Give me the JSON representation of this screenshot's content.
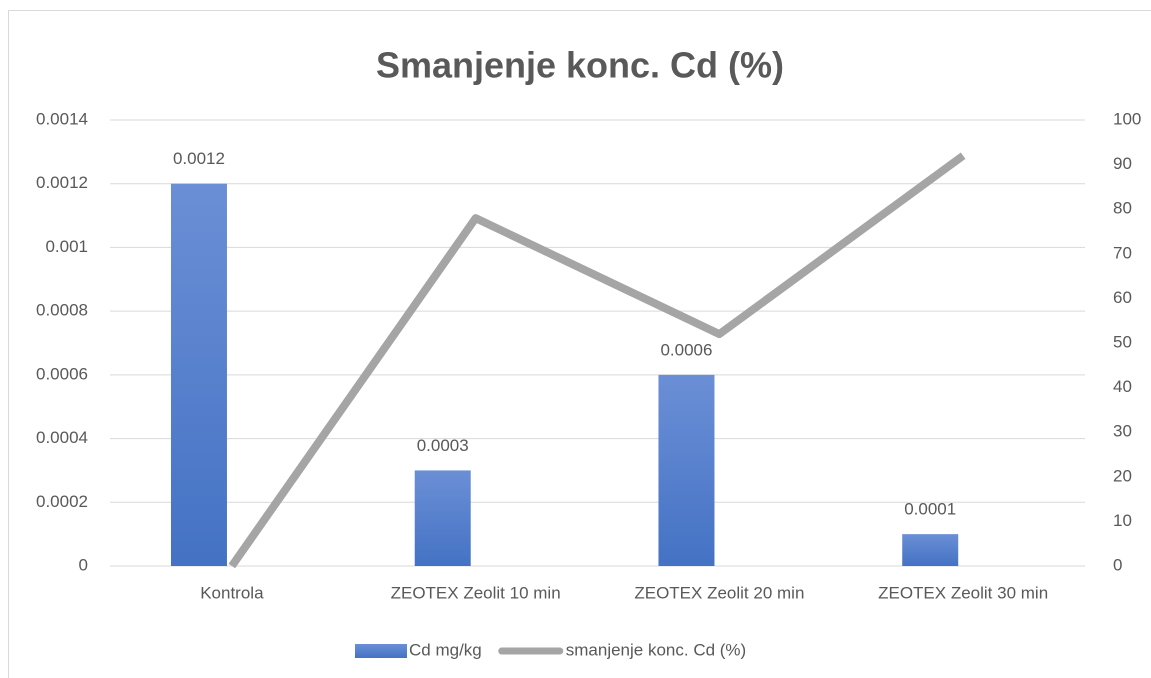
{
  "chart_data": {
    "type": "bar-line",
    "title": "Smanjenje konc. Cd (%)",
    "categories": [
      "Kontrola",
      "ZEOTEX Zeolit 10 min",
      "ZEOTEX Zeolit 20 min",
      "ZEOTEX Zeolit 30 min"
    ],
    "series": [
      {
        "name": "Cd mg/kg",
        "type": "bar",
        "color": "#4472c4",
        "values": [
          0.0012,
          0.0003,
          0.0006,
          0.0001
        ]
      },
      {
        "name": "smanjenje konc. Cd (%)",
        "type": "line",
        "axis": "y2",
        "color": "#a5a5a5",
        "values": [
          0,
          78,
          52,
          92
        ]
      }
    ],
    "ylim": [
      0,
      0.0014
    ],
    "yticks": [
      0,
      0.0002,
      0.0004,
      0.0006,
      0.0008,
      0.001,
      0.0012,
      0.0014
    ],
    "y2lim": [
      0,
      100
    ],
    "y2ticks": [
      0,
      10,
      20,
      30,
      40,
      50,
      60,
      70,
      80,
      90,
      100
    ],
    "grid": true,
    "legend": "bottom"
  }
}
